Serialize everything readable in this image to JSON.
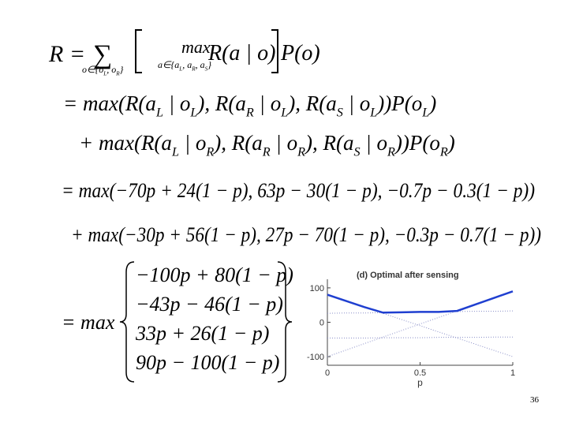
{
  "equations": {
    "line1": {
      "lhs": "R =",
      "sum": "∑",
      "sum_under": [
        "o∈{o",
        {
          "sub": "L"
        },
        ", o",
        {
          "sub": "R"
        },
        "}"
      ],
      "max": "max",
      "max_under": [
        "a∈{a",
        {
          "sub": "L"
        },
        ", a",
        {
          "sub": "R"
        },
        ", a",
        {
          "sub": "S"
        },
        "}"
      ],
      "body": "R(a | o)",
      "tail": "P(o)"
    },
    "line2": [
      "= max(R(a",
      {
        "sub": "L"
      },
      " | o",
      {
        "sub": "L"
      },
      "), R(a",
      {
        "sub": "R"
      },
      " | o",
      {
        "sub": "L"
      },
      "), R(a",
      {
        "sub": "S"
      },
      " | o",
      {
        "sub": "L"
      },
      "))P(o",
      {
        "sub": "L"
      },
      ")"
    ],
    "line3": [
      "+ max(R(a",
      {
        "sub": "L"
      },
      " | o",
      {
        "sub": "R"
      },
      "), R(a",
      {
        "sub": "R"
      },
      " | o",
      {
        "sub": "R"
      },
      "), R(a",
      {
        "sub": "S"
      },
      " | o",
      {
        "sub": "R"
      },
      "))P(o",
      {
        "sub": "R"
      },
      ")"
    ],
    "line4": "= max(−70p + 24(1 − p), 63p − 30(1 − p), −0.7p − 0.3(1 − p))",
    "line5": "+ max(−30p + 56(1 − p), 27p − 70(1 − p), −0.3p − 0.7(1 − p))",
    "line6": {
      "lhs": "= max",
      "cases": [
        "−100p + 80(1 − p)",
        "−43p − 46(1 − p)",
        "33p + 26(1 − p)",
        "90p − 100(1 − p)"
      ]
    }
  },
  "chart_data": {
    "type": "line",
    "title": "(d) Optimal after sensing",
    "x_label": "p",
    "x": [
      0,
      0.1,
      0.2,
      0.3,
      0.4,
      0.5,
      0.6,
      0.7,
      0.8,
      0.9,
      1
    ],
    "series": [
      {
        "color": "#1f3fd0",
        "style": "solid",
        "values": [
          80,
          62,
          44,
          28,
          29,
          30,
          30,
          33,
          52,
          71,
          90
        ]
      },
      {
        "color": "#8a8fc8",
        "style": "dotted",
        "values": [
          80,
          62,
          44,
          26,
          8,
          -10,
          -28,
          -46,
          -64,
          -82,
          -100
        ]
      },
      {
        "color": "#8a8fc8",
        "style": "dotted",
        "values": [
          -46,
          -46,
          -46,
          -45,
          -45,
          -45,
          -44,
          -44,
          -44,
          -43,
          -43
        ]
      },
      {
        "color": "#8a8fc8",
        "style": "dotted",
        "values": [
          26,
          27,
          27,
          28,
          29,
          30,
          30,
          31,
          32,
          32,
          33
        ]
      },
      {
        "color": "#8a8fc8",
        "style": "dotted",
        "values": [
          -100,
          -81,
          -62,
          -43,
          -24,
          -5,
          14,
          33,
          52,
          71,
          90
        ]
      }
    ],
    "xlim": [
      0,
      1
    ],
    "xticks": [
      0,
      0.5,
      1
    ],
    "ylim": [
      -125,
      125
    ],
    "yticks": [
      -100,
      0,
      100
    ]
  },
  "page_number": "36"
}
